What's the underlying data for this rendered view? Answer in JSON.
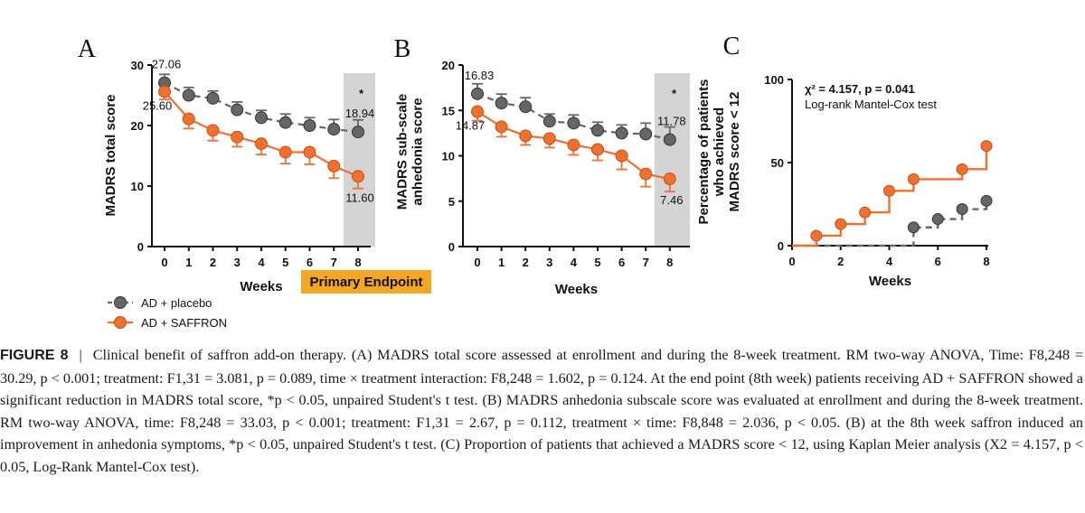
{
  "colors": {
    "placebo": "#666666",
    "saffron": "#f07030",
    "endpoint_shade": "#d4d4d4",
    "endpoint_box": "#f5a623"
  },
  "chart_data": [
    {
      "panel": "A",
      "type": "line",
      "ylabel": "MADRS total score",
      "xlabel": "Weeks",
      "ylim": [
        0,
        30
      ],
      "yticks": [
        0,
        10,
        20,
        30
      ],
      "x": [
        0,
        1,
        2,
        3,
        4,
        5,
        6,
        7,
        8
      ],
      "series": [
        {
          "name": "AD + placebo",
          "values": [
            27.06,
            25.0,
            24.5,
            22.6,
            21.3,
            20.5,
            20.0,
            19.4,
            18.94
          ],
          "err": [
            1.4,
            1.3,
            1.2,
            1.3,
            1.2,
            1.4,
            1.3,
            1.6,
            2.0
          ]
        },
        {
          "name": "AD + SAFFRON",
          "values": [
            25.6,
            21.1,
            19.2,
            18.1,
            17.0,
            15.6,
            15.6,
            13.3,
            11.6
          ],
          "err": [
            1.3,
            1.6,
            1.7,
            1.6,
            1.8,
            1.9,
            2.0,
            2.0,
            2.0
          ]
        }
      ],
      "labels": [
        {
          "text": "27.06",
          "series": 0,
          "x": 0,
          "pos": "above"
        },
        {
          "text": "25.60",
          "series": 1,
          "x": 0,
          "pos": "below"
        },
        {
          "text": "18.94",
          "series": 0,
          "x": 8,
          "pos": "above"
        },
        {
          "text": "11.60",
          "series": 1,
          "x": 8,
          "pos": "below"
        }
      ],
      "endpoint_week": 8,
      "significance": "*",
      "endpoint_label": "Primary Endpoint"
    },
    {
      "panel": "B",
      "type": "line",
      "ylabel": [
        "MADRS sub-scale",
        "anhedonia score"
      ],
      "xlabel": "Weeks",
      "ylim": [
        0,
        20
      ],
      "yticks": [
        0,
        5,
        10,
        15,
        20
      ],
      "x": [
        0,
        1,
        2,
        3,
        4,
        5,
        6,
        7,
        8
      ],
      "series": [
        {
          "name": "AD + placebo",
          "values": [
            16.83,
            15.8,
            15.4,
            13.8,
            13.6,
            12.8,
            12.5,
            12.4,
            11.78
          ],
          "err": [
            1.1,
            1.0,
            1.0,
            0.8,
            0.9,
            0.9,
            0.9,
            1.2,
            1.4
          ]
        },
        {
          "name": "AD + SAFFRON",
          "values": [
            14.87,
            13.2,
            12.2,
            11.9,
            11.2,
            10.7,
            10.0,
            8.0,
            7.46
          ],
          "err": [
            1.0,
            1.1,
            1.0,
            1.0,
            1.1,
            1.2,
            1.5,
            1.4,
            1.4
          ]
        }
      ],
      "labels": [
        {
          "text": "16.83",
          "series": 0,
          "x": 0,
          "pos": "above"
        },
        {
          "text": "14.87",
          "series": 1,
          "x": 0,
          "pos": "below"
        },
        {
          "text": "11.78",
          "series": 0,
          "x": 8,
          "pos": "above"
        },
        {
          "text": "7.46",
          "series": 1,
          "x": 8,
          "pos": "below"
        }
      ],
      "endpoint_week": 8,
      "significance": "*"
    },
    {
      "panel": "C",
      "type": "line",
      "subtype": "kaplan-meier-step",
      "ylabel": [
        "Percentage of patients",
        "who achieved",
        "MADRS score < 12"
      ],
      "xlabel": "Weeks",
      "ylim": [
        0,
        100
      ],
      "yticks": [
        0,
        50,
        100
      ],
      "xlim": [
        0,
        8
      ],
      "xticks": [
        0,
        2,
        4,
        6,
        8
      ],
      "series": [
        {
          "name": "AD + placebo",
          "steps": [
            [
              0,
              0
            ],
            [
              5,
              11
            ],
            [
              6,
              16
            ],
            [
              7,
              22
            ],
            [
              8,
              27
            ]
          ]
        },
        {
          "name": "AD + SAFFRON",
          "steps": [
            [
              0,
              0
            ],
            [
              1,
              6
            ],
            [
              2,
              13
            ],
            [
              3,
              20
            ],
            [
              4,
              33
            ],
            [
              5,
              40
            ],
            [
              7,
              46
            ],
            [
              8,
              60
            ]
          ]
        }
      ],
      "stat_text": "χ² = 4.157, p = 0.041",
      "test_text": "Log-rank Mantel-Cox test"
    }
  ],
  "legend": [
    {
      "label": "AD + placebo",
      "color": "#666666"
    },
    {
      "label": "AD + SAFFRON",
      "color": "#f07030"
    }
  ],
  "caption": {
    "label": "FIGURE 8",
    "separator": "|",
    "text": "Clinical benefit of saffron add-on therapy. (A) MADRS total score assessed at enrollment and during the 8-week treatment. RM two-way ANOVA, Time: F8,248 = 30.29, p < 0.001; treatment: F1,31 = 3.081, p = 0.089, time × treatment interaction: F8,248 = 1.602, p = 0.124. At the end point (8th week) patients receiving AD + SAFFRON showed a significant reduction in MADRS total score, *p < 0.05, unpaired Student's t test. (B) MADRS anhedonia subscale score was evaluated at enrollment and during the 8-week treatment. RM two-way ANOVA, time: F8,248 = 33.03, p < 0.001; treatment: F1,31 = 2.67, p = 0.112, treatment × time: F8,848 = 2.036, p < 0.05. (B) at the 8th week saffron induced an improvement in anhedonia symptoms, *p < 0.05, unpaired Student's t test. (C) Proportion of patients that achieved a MADRS score < 12, using Kaplan Meier analysis (X2 = 4.157, p < 0.05, Log-Rank Mantel-Cox test)."
  }
}
